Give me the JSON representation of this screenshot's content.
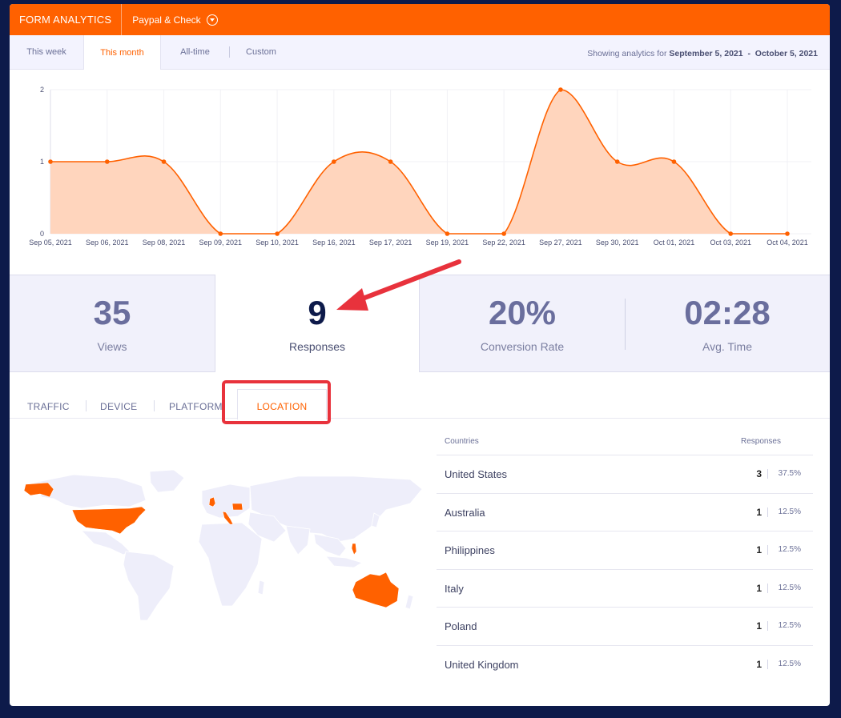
{
  "header": {
    "title": "FORM ANALYTICS",
    "form_name": "Paypal & Check"
  },
  "date_tabs": {
    "this_week": "This week",
    "this_month": "This month",
    "all_time": "All-time",
    "custom": "Custom",
    "active": "this_month"
  },
  "range": {
    "prefix": "Showing analytics for",
    "start": "September 5, 2021",
    "separator": "-",
    "end": "October 5, 2021"
  },
  "chart_data": {
    "type": "area",
    "categories": [
      "Sep 05, 2021",
      "Sep 06, 2021",
      "Sep 08, 2021",
      "Sep 09, 2021",
      "Sep 10, 2021",
      "Sep 16, 2021",
      "Sep 17, 2021",
      "Sep 19, 2021",
      "Sep 22, 2021",
      "Sep 27, 2021",
      "Sep 30, 2021",
      "Oct 01, 2021",
      "Oct 03, 2021",
      "Oct 04, 2021"
    ],
    "values": [
      1,
      1,
      1,
      0,
      0,
      1,
      1,
      0,
      0,
      2,
      1,
      1,
      0,
      0
    ],
    "yticks": [
      "0",
      "1",
      "2"
    ],
    "ylim": [
      0,
      2
    ],
    "grid": true,
    "line_color": "#ff6100",
    "fill_color": "#ffd5bd"
  },
  "stats": {
    "views": {
      "value": "35",
      "label": "Views"
    },
    "responses": {
      "value": "9",
      "label": "Responses"
    },
    "conversion": {
      "value": "20%",
      "label": "Conversion Rate"
    },
    "avg_time": {
      "value": "02:28",
      "label": "Avg. Time"
    }
  },
  "section_tabs": {
    "traffic": "TRAFFIC",
    "device": "DEVICE",
    "platform": "PLATFORM",
    "location": "LOCATION",
    "active": "location"
  },
  "table": {
    "col_country": "Countries",
    "col_responses": "Responses",
    "rows": [
      {
        "country": "United States",
        "count": "3",
        "pct": "37.5%"
      },
      {
        "country": "Australia",
        "count": "1",
        "pct": "12.5%"
      },
      {
        "country": "Philippines",
        "count": "1",
        "pct": "12.5%"
      },
      {
        "country": "Italy",
        "count": "1",
        "pct": "12.5%"
      },
      {
        "country": "Poland",
        "count": "1",
        "pct": "12.5%"
      },
      {
        "country": "United Kingdom",
        "count": "1",
        "pct": "12.5%"
      }
    ]
  },
  "colors": {
    "brand": "#ff6100",
    "background": "#0d1a4a",
    "map_base": "#eeeefa",
    "map_highlight": "#ff6100",
    "annotation": "#e8323c"
  }
}
